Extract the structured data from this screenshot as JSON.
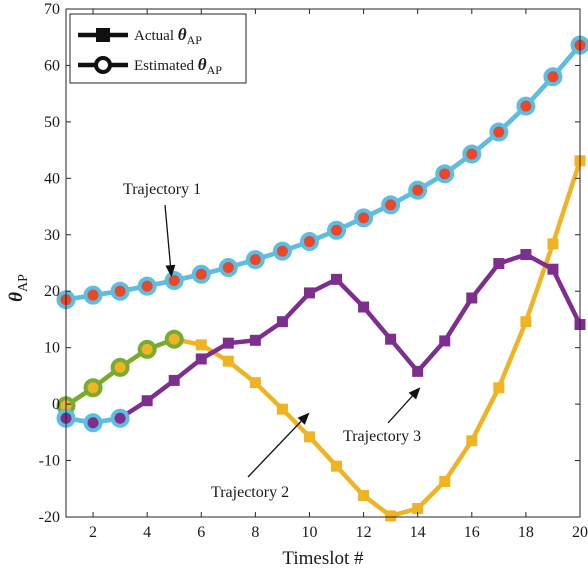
{
  "chart_data": {
    "type": "line",
    "xlabel": "Timeslot #",
    "ylabel": "θ",
    "ylabel_subscript": "AP",
    "xlim": [
      1,
      20
    ],
    "ylim": [
      -20,
      70
    ],
    "xticks": [
      2,
      4,
      6,
      8,
      10,
      12,
      14,
      16,
      18,
      20
    ],
    "yticks": [
      -20,
      -10,
      0,
      10,
      20,
      30,
      40,
      50,
      60,
      70
    ],
    "grid": false,
    "legend": {
      "placement": "top-left",
      "entries": [
        {
          "prefix": "Actual ",
          "symbol": "θ",
          "subscript": "AP",
          "marker": "square"
        },
        {
          "prefix": "Estimated ",
          "symbol": "θ",
          "subscript": "AP",
          "marker": "circle"
        }
      ]
    },
    "annotations": [
      {
        "text": "Trajectory 1",
        "arrow_to": [
          4.9,
          22.5
        ]
      },
      {
        "text": "Trajectory 2",
        "arrow_to": [
          10.0,
          -1.5
        ]
      },
      {
        "text": "Trajectory 3",
        "arrow_to": [
          14.1,
          3.0
        ]
      }
    ],
    "series": [
      {
        "role": "actual",
        "color": "#e8472a",
        "x": [
          1,
          2,
          3,
          4,
          5,
          6,
          7,
          8,
          9,
          10,
          11,
          12,
          13,
          14,
          15,
          16,
          17,
          18,
          19,
          20
        ],
        "values": [
          18.5,
          19.3,
          20.0,
          20.9,
          21.9,
          23.0,
          24.2,
          25.6,
          27.1,
          28.8,
          30.8,
          33.0,
          35.3,
          37.9,
          40.8,
          44.3,
          48.2,
          52.8,
          58.0,
          63.6
        ]
      },
      {
        "role": "estimated",
        "color": "#5bbfe3",
        "marker_fill": "#e8472a",
        "x": [
          1,
          2,
          3,
          4,
          5,
          6,
          7,
          8,
          9,
          10,
          11,
          12,
          13,
          14,
          15,
          16,
          17,
          18,
          19,
          20
        ],
        "values": [
          18.5,
          19.3,
          20.0,
          20.9,
          21.9,
          23.0,
          24.2,
          25.6,
          27.1,
          28.8,
          30.8,
          33.0,
          35.3,
          37.9,
          40.8,
          44.3,
          48.2,
          52.8,
          58.0,
          63.6
        ]
      },
      {
        "role": "actual",
        "color": "#f0b323",
        "x": [
          1,
          2,
          3,
          4,
          5,
          6,
          7,
          8,
          9,
          10,
          11,
          12,
          13,
          14,
          15,
          16,
          17,
          18,
          19,
          20
        ],
        "values": [
          -0.3,
          2.9,
          6.5,
          9.7,
          11.5,
          10.5,
          7.6,
          3.8,
          -0.9,
          -5.8,
          -11.0,
          -16.2,
          -19.8,
          -18.5,
          -13.7,
          -6.5,
          2.9,
          14.6,
          28.4,
          43.1
        ]
      },
      {
        "role": "estimated",
        "color": "#77ac30",
        "marker_fill": "#f0b323",
        "x": [
          1,
          2,
          3,
          4,
          5
        ],
        "values": [
          -0.3,
          2.9,
          6.5,
          9.7,
          11.5
        ]
      },
      {
        "role": "actual",
        "color": "#7e2f8e",
        "x": [
          1,
          2,
          3,
          4,
          5,
          6,
          7,
          8,
          9,
          10,
          11,
          12,
          13,
          14,
          15,
          16,
          17,
          18,
          19,
          20
        ],
        "values": [
          -2.5,
          -3.3,
          -2.5,
          0.6,
          4.2,
          8.0,
          10.8,
          11.3,
          14.6,
          19.7,
          22.1,
          17.2,
          11.5,
          5.8,
          11.2,
          18.8,
          24.9,
          26.5,
          23.9,
          14.1
        ]
      },
      {
        "role": "estimated",
        "color": "#5bbfe3",
        "marker_fill": "#7e2f8e",
        "x": [
          1,
          2,
          3
        ],
        "values": [
          -2.5,
          -3.3,
          -2.5
        ]
      }
    ]
  }
}
